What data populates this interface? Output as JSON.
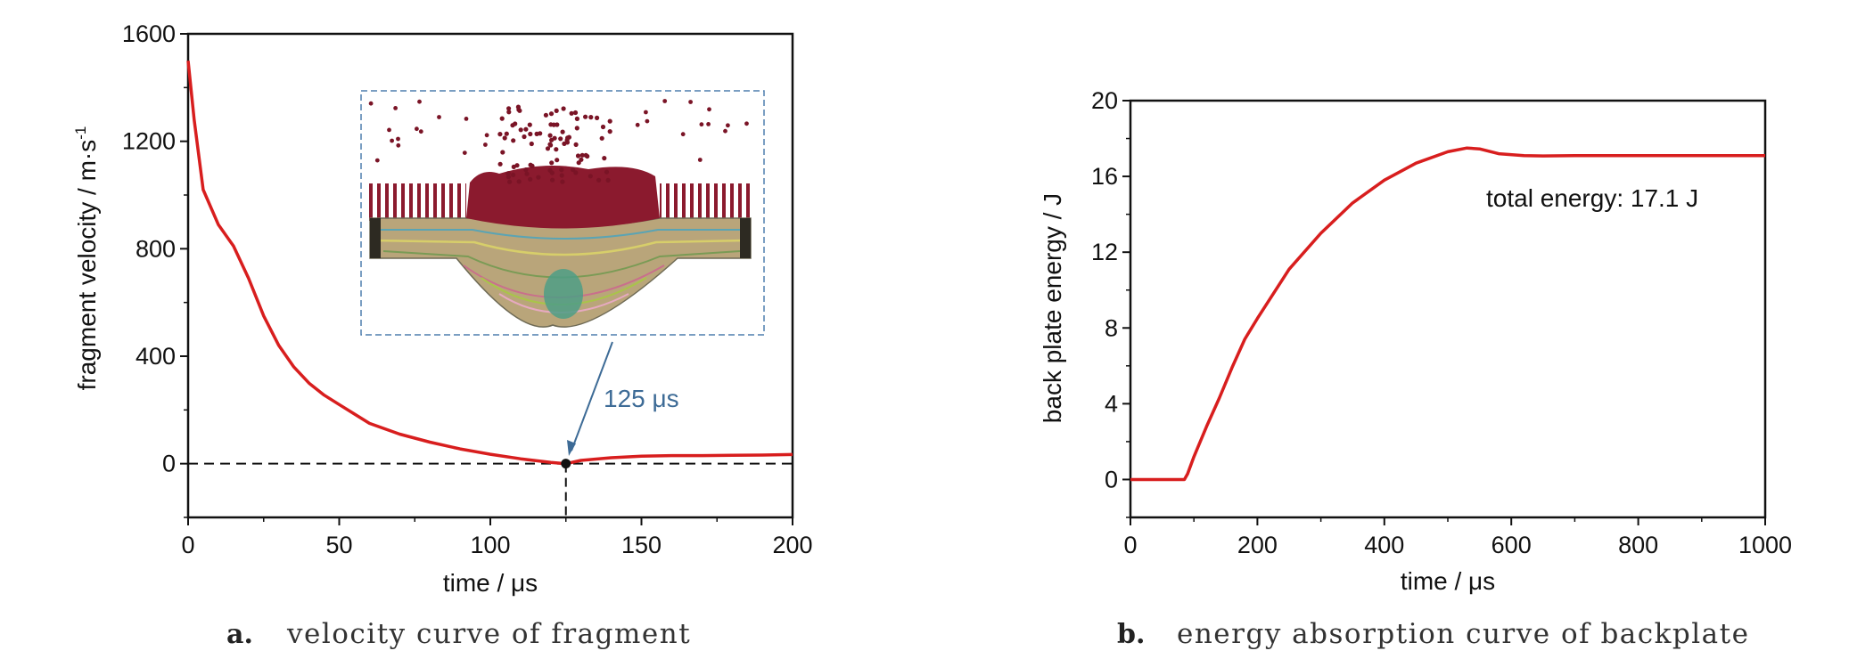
{
  "chart_data": [
    {
      "type": "line",
      "caption_letter": "a.",
      "caption": "velocity curve of fragment",
      "xlabel": "time / μs",
      "ylabel": "fragment velocity / m·s",
      "ylabel_sup": "-1",
      "xlim": [
        0,
        200
      ],
      "ylim": [
        -200,
        1600
      ],
      "xticks": [
        0,
        50,
        100,
        150,
        200
      ],
      "yticks": [
        0,
        400,
        800,
        1200,
        1600
      ],
      "grid": false,
      "reference_line_y": 0,
      "marker_point": {
        "x": 125,
        "y": 0
      },
      "annotation": "125 μs",
      "inset": "simulation snapshot of fragment penetrating target",
      "colors": {
        "line": "#d81e1e",
        "annotation": "#3d6b96",
        "inset_border": "#4f7fad"
      },
      "series": [
        {
          "x": [
            0,
            2,
            5,
            10,
            15,
            20,
            25,
            30,
            35,
            40,
            45,
            50,
            55,
            60,
            70,
            80,
            90,
            100,
            110,
            120,
            125,
            130,
            140,
            150,
            160,
            170,
            180,
            190,
            200
          ],
          "y": [
            1500,
            1280,
            1020,
            890,
            810,
            690,
            550,
            440,
            360,
            300,
            255,
            220,
            185,
            150,
            110,
            80,
            55,
            35,
            18,
            5,
            0,
            12,
            22,
            28,
            30,
            30,
            31,
            32,
            34
          ]
        }
      ]
    },
    {
      "type": "line",
      "caption_letter": "b.",
      "caption": "energy absorption curve of backplate",
      "xlabel": "time / μs",
      "ylabel": "back plate energy / J",
      "xlim": [
        0,
        1000
      ],
      "ylim": [
        -2,
        20
      ],
      "xticks": [
        0,
        200,
        400,
        600,
        800,
        1000
      ],
      "yticks": [
        0,
        4,
        8,
        12,
        16,
        20
      ],
      "grid": false,
      "annotation": "total energy: 17.1 J",
      "colors": {
        "line": "#d81e1e"
      },
      "series": [
        {
          "x": [
            0,
            85,
            90,
            100,
            120,
            140,
            160,
            180,
            200,
            250,
            300,
            350,
            400,
            450,
            500,
            530,
            550,
            580,
            620,
            650,
            700,
            800,
            900,
            1000
          ],
          "y": [
            0,
            0,
            0.3,
            1.2,
            2.8,
            4.3,
            5.9,
            7.4,
            8.5,
            11.1,
            13.0,
            14.6,
            15.8,
            16.7,
            17.3,
            17.5,
            17.45,
            17.2,
            17.1,
            17.08,
            17.1,
            17.1,
            17.1,
            17.1
          ]
        }
      ]
    }
  ]
}
